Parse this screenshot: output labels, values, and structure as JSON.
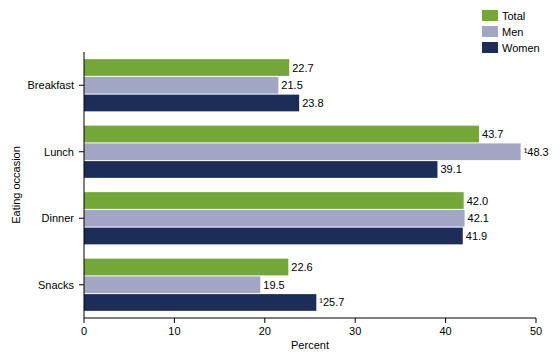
{
  "chart_data": {
    "type": "bar",
    "orientation": "horizontal",
    "x_label": "Percent",
    "y_label": "Eating occasion",
    "categories": [
      "Breakfast",
      "Lunch",
      "Dinner",
      "Snacks"
    ],
    "series": [
      {
        "name": "Total",
        "color": "#73a839",
        "values": [
          22.7,
          43.7,
          42.0,
          22.6
        ],
        "value_labels": [
          "22.7",
          "43.7",
          "42.0",
          "22.6"
        ]
      },
      {
        "name": "Men",
        "color": "#a0a6c4",
        "values": [
          21.5,
          48.3,
          42.1,
          19.5
        ],
        "value_labels": [
          "21.5",
          "¹48.3",
          "42.1",
          "19.5"
        ]
      },
      {
        "name": "Women",
        "color": "#1c2d5a",
        "values": [
          23.8,
          39.1,
          41.9,
          25.7
        ],
        "value_labels": [
          "23.8",
          "39.1",
          "41.9",
          "¹25.7"
        ]
      }
    ],
    "xlim": [
      0,
      50
    ],
    "xticks": [
      0,
      10,
      20,
      30,
      40,
      50
    ],
    "grid": false,
    "legend": "top-right",
    "data_labels": true
  }
}
